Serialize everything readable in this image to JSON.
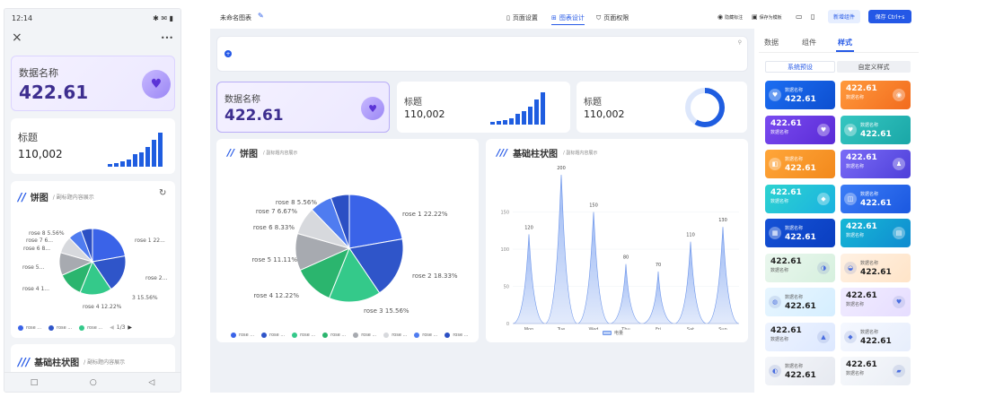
{
  "phone": {
    "status_time": "12:14",
    "status_icons": "✱ ✉ ▮",
    "close": "×",
    "more": "•••",
    "card1_label": "数据名称",
    "card1_value": "422.61",
    "card2_label": "标题",
    "card2_value": "110,002",
    "pie_title": "饼图",
    "pie_subtitle": "/ 副标题内容展示",
    "pie_labels": [
      "rose 8 5.56%",
      "rose 7 6...",
      "rose 6 8...",
      "rose 5...",
      "rose 4 1...",
      "rose 1 22...",
      "rose 2...",
      "3 15.56%",
      "rose 4 12.22%"
    ],
    "legend": [
      "rose ...",
      "rose ...",
      "rose ..."
    ],
    "legend_page": "1/3",
    "bar_title": "基础柱状图",
    "bar_subtitle": "/ 副标题内容展示"
  },
  "editor": {
    "chart_name": "未命名图表",
    "tab_page": "页面设置",
    "tab_chart": "图表设计",
    "tab_perm": "页面权限",
    "act_hide": "隐藏标注",
    "act_save_tpl": "保存为模板",
    "add_widget": "新增组件",
    "save": "保存 Ctrl+s"
  },
  "canvas": {
    "card1_label": "数据名称",
    "card1_value": "422.61",
    "card2_label": "标题",
    "card2_value": "110,002",
    "card3_label": "标题",
    "card3_value": "110,002",
    "pie_title": "饼图",
    "pie_subtitle": "/ 副标题内容展示",
    "bar_title": "基础柱状图",
    "bar_subtitle": "/ 副标题内容展示",
    "bar_legend": "电量"
  },
  "chart_data": [
    {
      "type": "pie",
      "title": "饼图",
      "subtitle": "/ 副标题内容展示",
      "categories": [
        "rose 1",
        "rose 2",
        "rose 3",
        "rose 4",
        "rose 5",
        "rose 6",
        "rose 7",
        "rose 8"
      ],
      "values": [
        22.22,
        18.33,
        15.56,
        12.22,
        11.11,
        8.33,
        6.67,
        5.56
      ],
      "labels": [
        "rose 1 22.22%",
        "rose 2 18.33%",
        "rose 3 15.56%",
        "rose 4 12.22%",
        "rose 5 11.11%",
        "rose 6 8.33%",
        "rose 7 6.67%",
        "rose 8 5.56%"
      ],
      "colors": [
        "#3a63e8",
        "#2f55c9",
        "#34c98a",
        "#2bb56e",
        "#a7aab0",
        "#d7d9dd",
        "#4f7cf0",
        "#2b4fc4"
      ],
      "legend": [
        "rose ...",
        "rose ...",
        "rose ...",
        "rose ...",
        "rose ...",
        "rose ...",
        "rose ...",
        "rose ..."
      ]
    },
    {
      "type": "area",
      "title": "基础柱状图",
      "subtitle": "/ 副标题内容展示",
      "categories": [
        "Mon",
        "Tue",
        "Wed",
        "Thu",
        "Fri",
        "Sat",
        "Sun"
      ],
      "values": [
        120,
        200,
        150,
        80,
        70,
        110,
        130
      ],
      "value_labels": [
        "120",
        "200",
        "150",
        "80",
        "70",
        "110",
        "130"
      ],
      "yticks": [
        "0",
        "50",
        "100",
        "150"
      ],
      "ylim": [
        0,
        200
      ],
      "legend": [
        "电量"
      ]
    }
  ],
  "right_panel": {
    "tabs": [
      "数据",
      "组件",
      "样式"
    ],
    "seg_left": "系统预设",
    "seg_right": "自定义样式",
    "tile_label": "数据名称",
    "tile_value": "422.61",
    "tiles": [
      {
        "bg": "linear-gradient(135deg,#1c6ef2,#0d4fd0)",
        "dark": false
      },
      {
        "bg": "linear-gradient(135deg,#ff9a3d,#f26b1d)",
        "dark": false
      },
      {
        "bg": "linear-gradient(135deg,#7a4bf0,#5a2bd6)",
        "dark": false
      },
      {
        "bg": "linear-gradient(135deg,#35c6c1,#1aa7a7)",
        "dark": false
      },
      {
        "bg": "linear-gradient(135deg,#ffa63a,#f2891c)",
        "dark": false
      },
      {
        "bg": "linear-gradient(135deg,#7b6cf7,#4e3fd9)",
        "dark": false
      },
      {
        "bg": "linear-gradient(135deg,#2dd3d0,#1ab2e0)",
        "dark": false
      },
      {
        "bg": "linear-gradient(135deg,#3b7cf6,#1b58e0)",
        "dark": false
      },
      {
        "bg": "linear-gradient(135deg,#1552d6,#0a3ec0)",
        "dark": false
      },
      {
        "bg": "linear-gradient(135deg,#17b8d6,#0f8bd0)",
        "dark": false
      },
      {
        "bg": "linear-gradient(135deg,#eaf7ee,#d6f0de)",
        "dark": true
      },
      {
        "bg": "linear-gradient(135deg,#fff1e3,#ffe4c8)",
        "dark": true
      },
      {
        "bg": "linear-gradient(135deg,#e8f6ff,#d5eeff)",
        "dark": true
      },
      {
        "bg": "linear-gradient(135deg,#f1ecff,#e6ddff)",
        "dark": true
      },
      {
        "bg": "linear-gradient(135deg,#eef4ff,#dde8ff)",
        "dark": true
      },
      {
        "bg": "linear-gradient(135deg,#f5f8ff,#e7eefc)",
        "dark": true
      },
      {
        "bg": "linear-gradient(135deg,#f4f6fa,#e6e9f0)",
        "dark": true
      },
      {
        "bg": "linear-gradient(135deg,#f7f9fc,#e9edf4)",
        "dark": true
      }
    ]
  }
}
